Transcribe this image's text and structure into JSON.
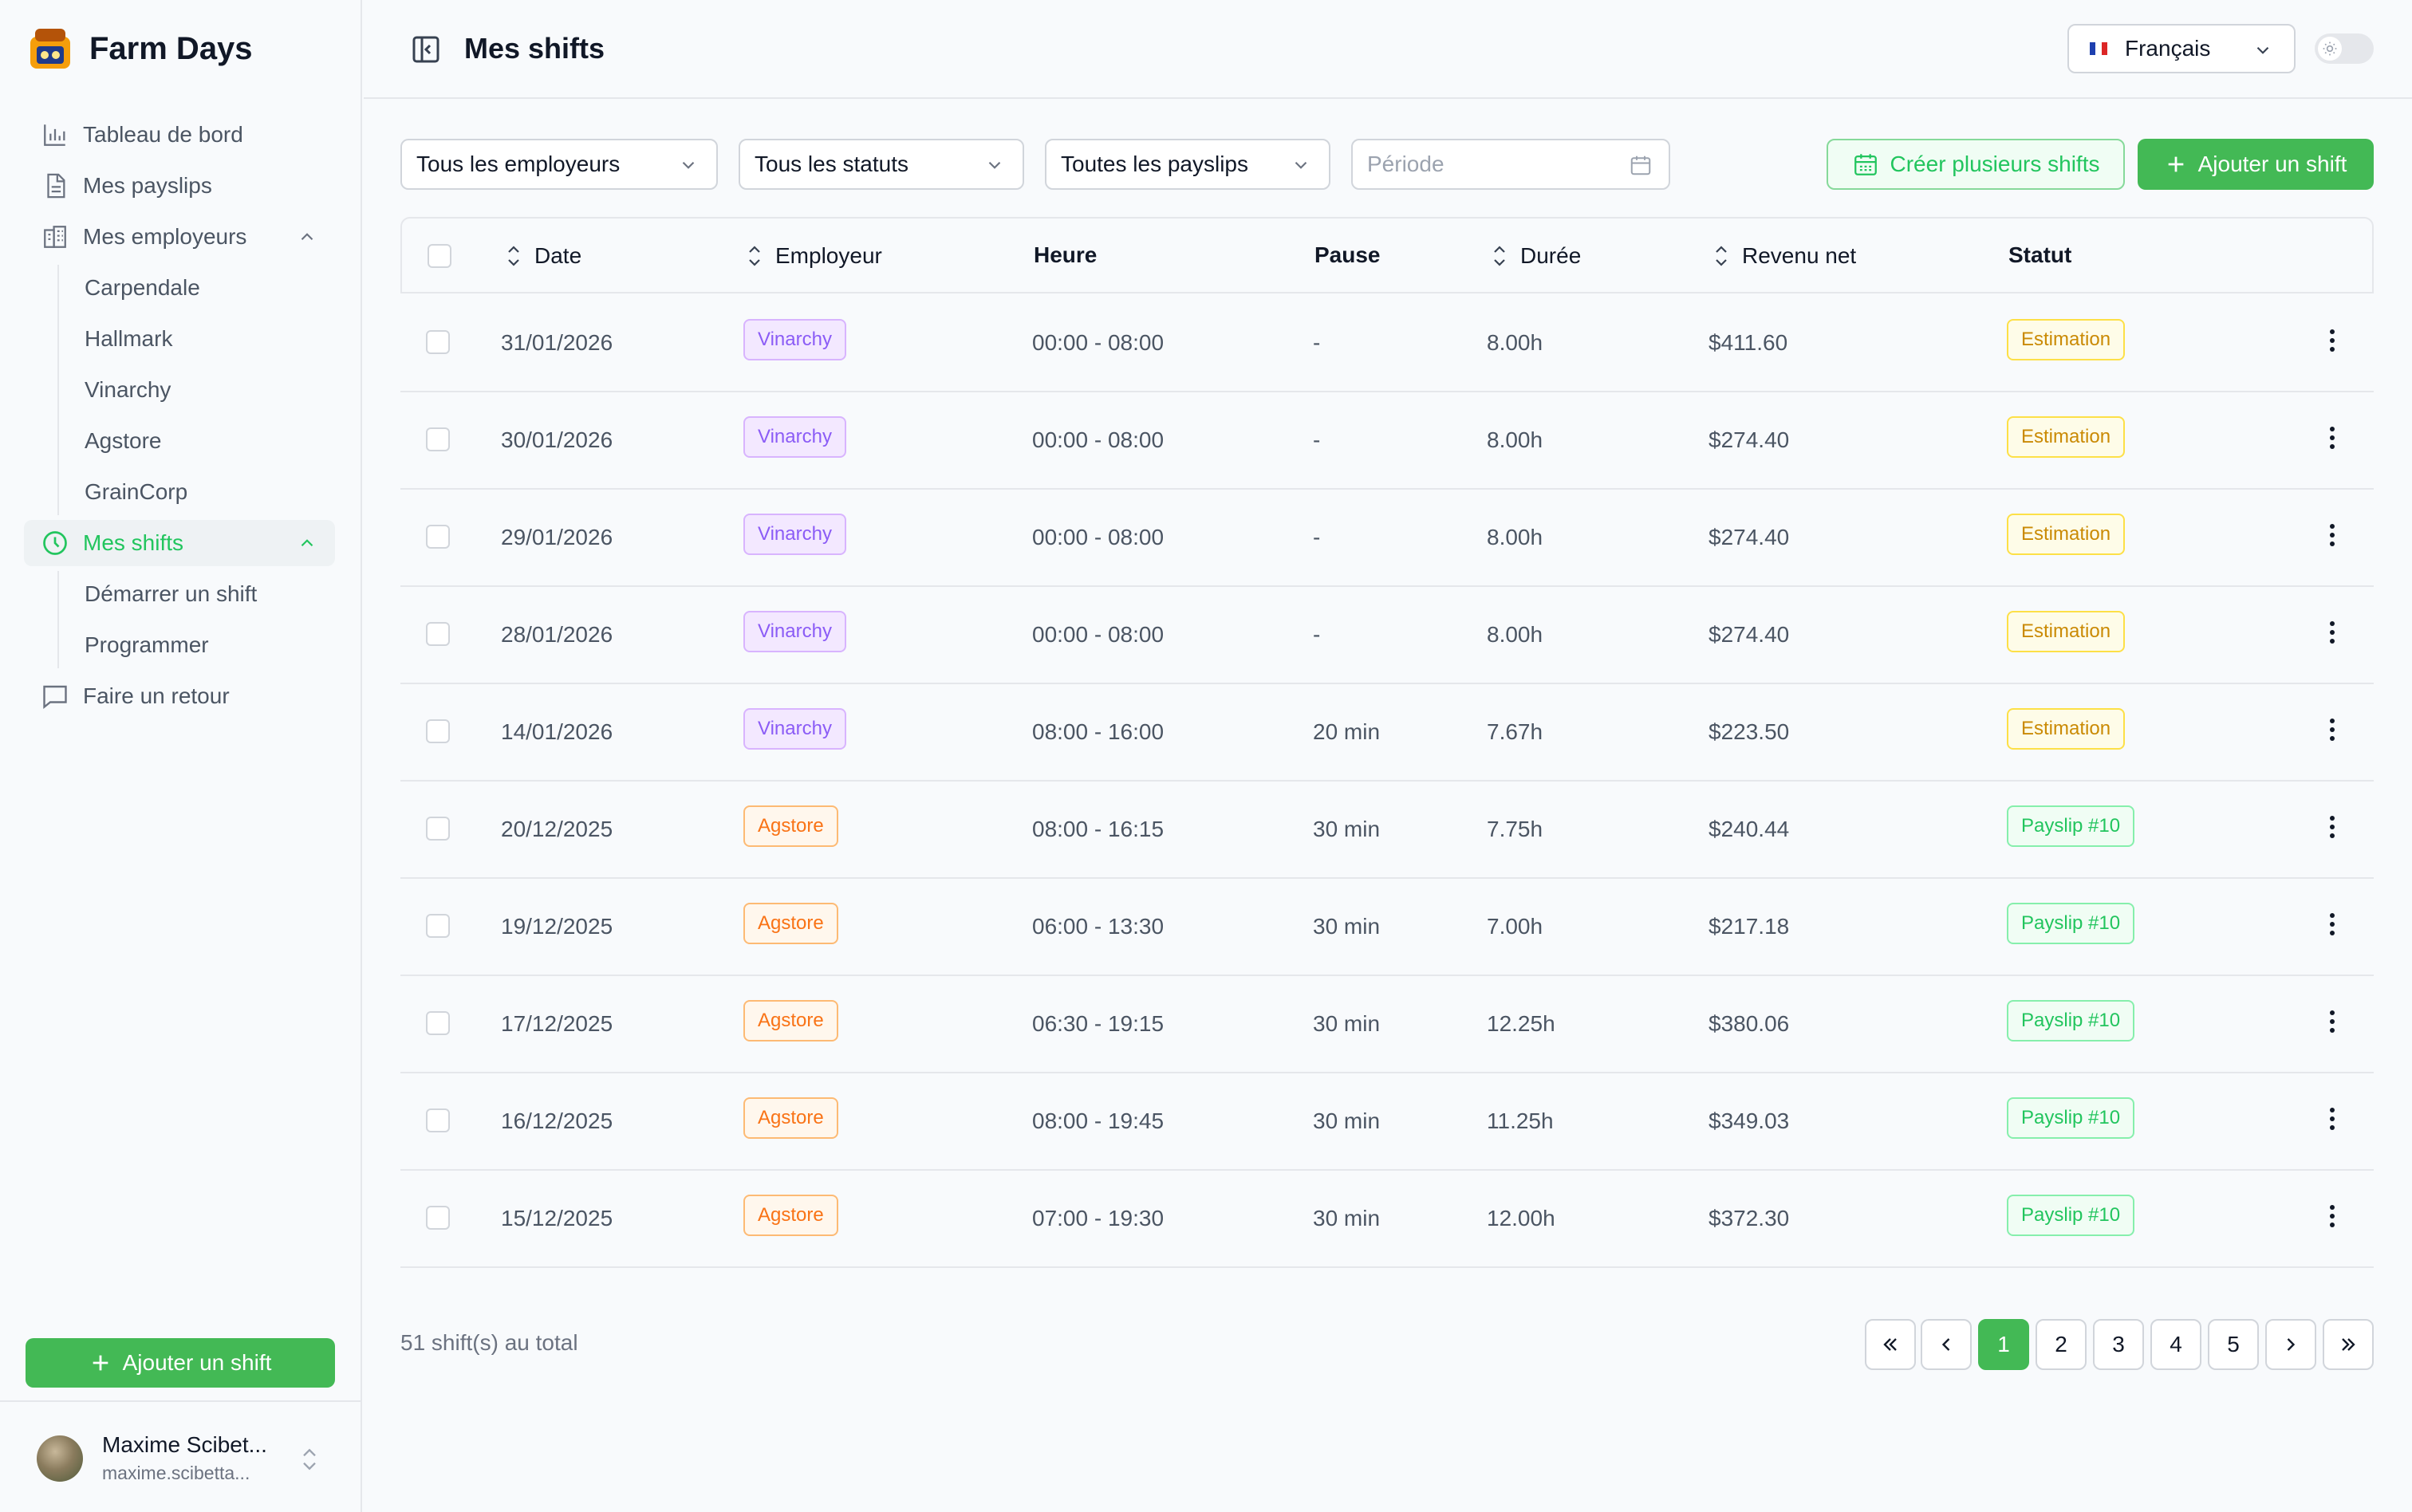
{
  "app": {
    "name": "Farm Days"
  },
  "sidebar": {
    "items": [
      {
        "label": "Tableau de bord",
        "icon": "bar-chart-icon"
      },
      {
        "label": "Mes payslips",
        "icon": "document-icon"
      },
      {
        "label": "Mes employeurs",
        "icon": "building-icon"
      },
      {
        "label": "Mes shifts",
        "icon": "clock-icon"
      },
      {
        "label": "Faire un retour",
        "icon": "message-icon"
      }
    ],
    "employers": [
      "Carpendale",
      "Hallmark",
      "Vinarchy",
      "Agstore",
      "GrainCorp"
    ],
    "shifts_sub": [
      "Démarrer un shift",
      "Programmer"
    ],
    "add_button": "Ajouter un shift"
  },
  "user": {
    "name": "Maxime Scibet...",
    "email": "maxime.scibetta..."
  },
  "header": {
    "title": "Mes shifts",
    "language": "Français"
  },
  "filters": {
    "employers": "Tous les employeurs",
    "statuses": "Tous les statuts",
    "payslips": "Toutes les payslips",
    "period_placeholder": "Période"
  },
  "actions": {
    "create_multiple": "Créer plusieurs shifts",
    "add_shift": "Ajouter un shift"
  },
  "table": {
    "columns": {
      "date": "Date",
      "employer": "Employeur",
      "time": "Heure",
      "pause": "Pause",
      "duration": "Durée",
      "net": "Revenu net",
      "status": "Statut"
    },
    "rows": [
      {
        "date": "31/01/2026",
        "employer": "Vinarchy",
        "time": "00:00 - 08:00",
        "pause": "-",
        "duration": "8.00h",
        "net": "$411.60",
        "status": "Estimation"
      },
      {
        "date": "30/01/2026",
        "employer": "Vinarchy",
        "time": "00:00 - 08:00",
        "pause": "-",
        "duration": "8.00h",
        "net": "$274.40",
        "status": "Estimation"
      },
      {
        "date": "29/01/2026",
        "employer": "Vinarchy",
        "time": "00:00 - 08:00",
        "pause": "-",
        "duration": "8.00h",
        "net": "$274.40",
        "status": "Estimation"
      },
      {
        "date": "28/01/2026",
        "employer": "Vinarchy",
        "time": "00:00 - 08:00",
        "pause": "-",
        "duration": "8.00h",
        "net": "$274.40",
        "status": "Estimation"
      },
      {
        "date": "14/01/2026",
        "employer": "Vinarchy",
        "time": "08:00 - 16:00",
        "pause": "20 min",
        "duration": "7.67h",
        "net": "$223.50",
        "status": "Estimation"
      },
      {
        "date": "20/12/2025",
        "employer": "Agstore",
        "time": "08:00 - 16:15",
        "pause": "30 min",
        "duration": "7.75h",
        "net": "$240.44",
        "status": "Payslip #10"
      },
      {
        "date": "19/12/2025",
        "employer": "Agstore",
        "time": "06:00 - 13:30",
        "pause": "30 min",
        "duration": "7.00h",
        "net": "$217.18",
        "status": "Payslip #10"
      },
      {
        "date": "17/12/2025",
        "employer": "Agstore",
        "time": "06:30 - 19:15",
        "pause": "30 min",
        "duration": "12.25h",
        "net": "$380.06",
        "status": "Payslip #10"
      },
      {
        "date": "16/12/2025",
        "employer": "Agstore",
        "time": "08:00 - 19:45",
        "pause": "30 min",
        "duration": "11.25h",
        "net": "$349.03",
        "status": "Payslip #10"
      },
      {
        "date": "15/12/2025",
        "employer": "Agstore",
        "time": "07:00 - 19:30",
        "pause": "30 min",
        "duration": "12.00h",
        "net": "$372.30",
        "status": "Payslip #10"
      }
    ]
  },
  "pagination": {
    "total": "51 shift(s) au total",
    "pages": [
      "1",
      "2",
      "3",
      "4",
      "5"
    ],
    "current": "1"
  },
  "colors": {
    "accent": "#43b955",
    "vinarchy": "#8b5cf6",
    "agstore": "#f97316",
    "estimation": "#ca8a04",
    "payslip": "#22c55e"
  }
}
